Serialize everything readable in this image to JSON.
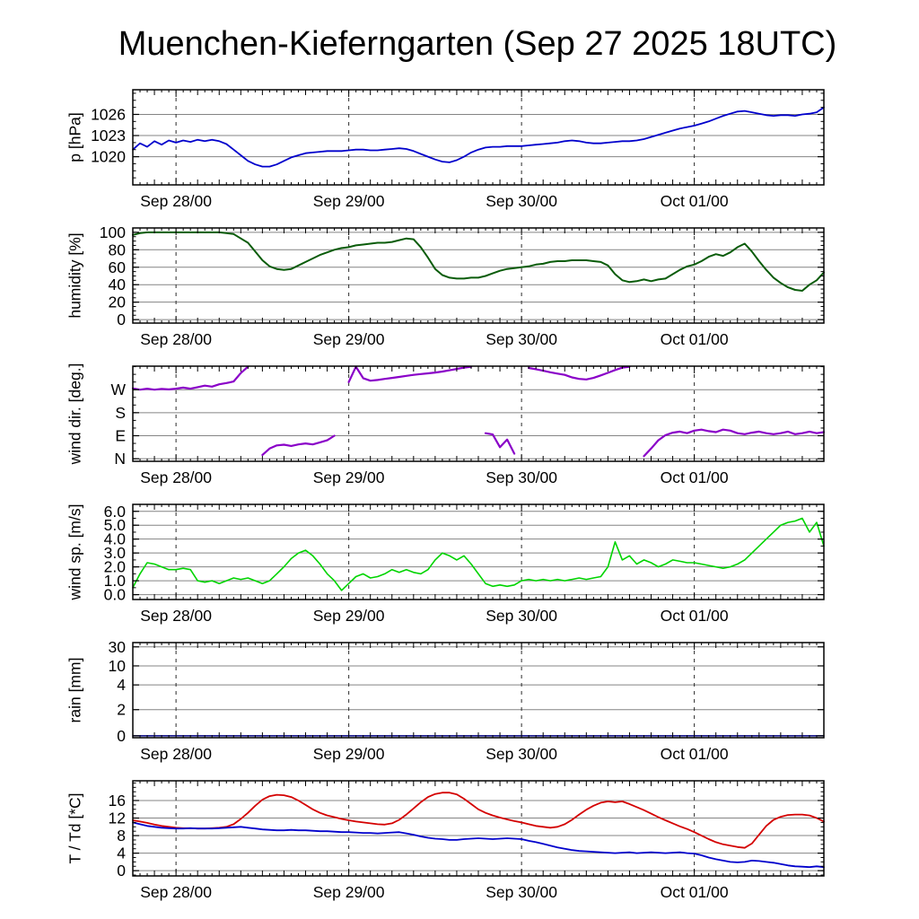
{
  "title": "Muenchen-Kieferngarten (Sep 27 2025 18UTC)",
  "colors": {
    "background": "#ffffff",
    "axis": "#000000",
    "grid": "#848484",
    "day_line": "#2b2b2b",
    "pressure": "#0000cc",
    "humidity": "#0a5c0a",
    "wind_direction": "#8a00c8",
    "wind_speed": "#00d400",
    "rain": "#000080",
    "temperature": "#d40000",
    "dewpoint": "#0000cc"
  },
  "xaxis": {
    "range": [
      0,
      96
    ],
    "step": 1,
    "day_ticks": [
      {
        "t": 6,
        "label": "Sep 28/00"
      },
      {
        "t": 30,
        "label": "Sep 29/00"
      },
      {
        "t": 54,
        "label": "Sep 30/00"
      },
      {
        "t": 78,
        "label": "Oct 01/00"
      }
    ]
  },
  "chart_data": [
    {
      "id": "pressure",
      "type": "line",
      "ylabel": "p [hPa]",
      "ylim": [
        1016,
        1029.5
      ],
      "ytick_minor": 1,
      "yticks": [
        {
          "v": 1020,
          "label": "1020"
        },
        {
          "v": 1023,
          "label": "1023"
        },
        {
          "v": 1026,
          "label": "1026"
        }
      ],
      "series": [
        {
          "name": "pressure",
          "color": "#0000cc",
          "width": 1.8,
          "values": [
            1021.0,
            1021.9,
            1021.4,
            1022.2,
            1021.7,
            1022.3,
            1022.0,
            1022.3,
            1022.1,
            1022.4,
            1022.2,
            1022.4,
            1022.2,
            1021.8,
            1021.0,
            1020.2,
            1019.4,
            1018.9,
            1018.6,
            1018.6,
            1018.9,
            1019.4,
            1019.9,
            1020.2,
            1020.5,
            1020.6,
            1020.7,
            1020.8,
            1020.8,
            1020.8,
            1020.9,
            1021.0,
            1021.0,
            1020.9,
            1020.9,
            1021.0,
            1021.1,
            1021.2,
            1021.1,
            1020.8,
            1020.4,
            1020.0,
            1019.6,
            1019.3,
            1019.2,
            1019.5,
            1020.0,
            1020.6,
            1021.0,
            1021.3,
            1021.4,
            1021.4,
            1021.5,
            1021.5,
            1021.5,
            1021.6,
            1021.7,
            1021.8,
            1021.9,
            1022.0,
            1022.2,
            1022.3,
            1022.2,
            1022.0,
            1021.9,
            1021.9,
            1022.0,
            1022.1,
            1022.2,
            1022.2,
            1022.3,
            1022.5,
            1022.8,
            1023.1,
            1023.4,
            1023.7,
            1024.0,
            1024.2,
            1024.4,
            1024.7,
            1025.0,
            1025.4,
            1025.8,
            1026.1,
            1026.4,
            1026.5,
            1026.3,
            1026.1,
            1025.9,
            1025.8,
            1025.9,
            1025.9,
            1025.8,
            1026.0,
            1026.1,
            1026.3,
            1027.0
          ]
        }
      ]
    },
    {
      "id": "humidity",
      "type": "line",
      "ylabel": "humidity [%]",
      "ylim": [
        -4,
        105
      ],
      "ytick_minor": 5,
      "yticks": [
        {
          "v": 0,
          "label": "0"
        },
        {
          "v": 20,
          "label": "20"
        },
        {
          "v": 40,
          "label": "40"
        },
        {
          "v": 60,
          "label": "60"
        },
        {
          "v": 80,
          "label": "80"
        },
        {
          "v": 100,
          "label": "100"
        }
      ],
      "series": [
        {
          "name": "humidity",
          "color": "#0a5c0a",
          "width": 2,
          "values": [
            97,
            99,
            100,
            100,
            100,
            100,
            100,
            100,
            100,
            100,
            100,
            100,
            100,
            99,
            98,
            93,
            88,
            78,
            68,
            61,
            58,
            57,
            58,
            62,
            66,
            70,
            74,
            77,
            80,
            82,
            83,
            85,
            86,
            87,
            88,
            88,
            89,
            91,
            93,
            92,
            83,
            71,
            58,
            51,
            48,
            47,
            47,
            48,
            48,
            50,
            53,
            56,
            58,
            59,
            60,
            61,
            63,
            64,
            66,
            67,
            67,
            68,
            68,
            68,
            67,
            66,
            62,
            52,
            45,
            43,
            44,
            46,
            44,
            46,
            47,
            52,
            57,
            61,
            63,
            67,
            72,
            75,
            73,
            77,
            83,
            87,
            78,
            67,
            57,
            48,
            42,
            37,
            34,
            33,
            40,
            45,
            54
          ]
        }
      ]
    },
    {
      "id": "wind-direction",
      "type": "line",
      "ylabel": "wind dir. [deg.]",
      "ylim": [
        -10,
        362
      ],
      "ytick_minor": 30,
      "yticks": [
        {
          "v": 0,
          "label": "N"
        },
        {
          "v": 90,
          "label": "E"
        },
        {
          "v": 180,
          "label": "S"
        },
        {
          "v": 270,
          "label": "W"
        }
      ],
      "series": [
        {
          "name": "wind-direction",
          "color": "#8a00c8",
          "width": 2.2,
          "values": [
            275,
            270,
            274,
            270,
            273,
            271,
            274,
            278,
            274,
            280,
            286,
            282,
            291,
            296,
            302,
            335,
            360,
            null,
            15,
            40,
            52,
            55,
            50,
            56,
            60,
            56,
            64,
            72,
            90,
            null,
            300,
            360,
            315,
            305,
            308,
            312,
            316,
            320,
            324,
            328,
            331,
            334,
            337,
            341,
            346,
            351,
            356,
            360,
            null,
            100,
            95,
            45,
            75,
            20,
            null,
            355,
            350,
            344,
            338,
            333,
            328,
            318,
            312,
            310,
            316,
            326,
            336,
            347,
            356,
            360,
            null,
            10,
            40,
            72,
            92,
            102,
            106,
            100,
            110,
            114,
            108,
            104,
            114,
            110,
            100,
            96,
            102,
            106,
            100,
            96,
            100,
            106,
            96,
            100,
            106,
            100,
            104
          ]
        }
      ]
    },
    {
      "id": "wind-speed",
      "type": "line",
      "ylabel": "wind sp. [m/s]",
      "ylim": [
        -0.35,
        6.5
      ],
      "ytick_minor": 0.5,
      "yticks": [
        {
          "v": 0,
          "label": "0.0"
        },
        {
          "v": 1,
          "label": "1.0"
        },
        {
          "v": 2,
          "label": "2.0"
        },
        {
          "v": 3,
          "label": "3.0"
        },
        {
          "v": 4,
          "label": "4.0"
        },
        {
          "v": 5,
          "label": "5.0"
        },
        {
          "v": 6,
          "label": "6.0"
        }
      ],
      "series": [
        {
          "name": "wind-speed",
          "color": "#00d400",
          "width": 1.6,
          "values": [
            0.5,
            1.5,
            2.3,
            2.2,
            2.0,
            1.8,
            1.8,
            1.9,
            1.8,
            1.0,
            0.9,
            1.0,
            0.8,
            1.0,
            1.2,
            1.1,
            1.2,
            1.0,
            0.8,
            1.0,
            1.5,
            2.0,
            2.6,
            3.0,
            3.2,
            2.8,
            2.2,
            1.5,
            1.0,
            0.3,
            0.8,
            1.3,
            1.5,
            1.2,
            1.3,
            1.5,
            1.8,
            1.6,
            1.8,
            1.6,
            1.5,
            1.8,
            2.5,
            3.0,
            2.8,
            2.5,
            2.8,
            2.2,
            1.5,
            0.8,
            0.6,
            0.7,
            0.6,
            0.7,
            1.0,
            1.1,
            1.0,
            1.1,
            1.0,
            1.1,
            1.0,
            1.1,
            1.2,
            1.1,
            1.2,
            1.3,
            2.0,
            3.8,
            2.5,
            2.8,
            2.2,
            2.5,
            2.3,
            2.0,
            2.2,
            2.5,
            2.4,
            2.3,
            2.3,
            2.2,
            2.1,
            2.0,
            1.9,
            2.0,
            2.2,
            2.5,
            3.0,
            3.5,
            4.0,
            4.5,
            5.0,
            5.2,
            5.3,
            5.5,
            4.5,
            5.2,
            3.5
          ]
        }
      ]
    },
    {
      "id": "rain",
      "type": "line",
      "ylabel": "rain [mm]",
      "yscale": "custom",
      "yticks": [
        {
          "v": 0,
          "f": 0.02,
          "label": "0"
        },
        {
          "v": 2,
          "f": 0.295,
          "label": "2"
        },
        {
          "v": 4,
          "f": 0.555,
          "label": "4"
        },
        {
          "v": 10,
          "f": 0.755,
          "label": "10"
        },
        {
          "v": 30,
          "f": 0.955,
          "label": "30"
        }
      ],
      "series": [
        {
          "name": "rain",
          "color": "#000080",
          "width": 1.5,
          "constant": 0
        }
      ]
    },
    {
      "id": "temperature",
      "type": "line",
      "ylabel": "T / Td [*C]",
      "ylim": [
        -1.2,
        20.5
      ],
      "ytick_minor": 1,
      "yticks": [
        {
          "v": 0,
          "label": "0"
        },
        {
          "v": 4,
          "label": "4"
        },
        {
          "v": 8,
          "label": "8"
        },
        {
          "v": 12,
          "label": "12"
        },
        {
          "v": 16,
          "label": "16"
        }
      ],
      "series": [
        {
          "name": "T",
          "color": "#d40000",
          "width": 1.8,
          "values": [
            11.5,
            11.2,
            10.9,
            10.5,
            10.2,
            10.0,
            9.8,
            9.7,
            9.7,
            9.6,
            9.6,
            9.7,
            9.8,
            10.0,
            10.6,
            11.8,
            13.2,
            14.8,
            16.2,
            17.0,
            17.3,
            17.2,
            16.8,
            16.0,
            15.0,
            14.0,
            13.2,
            12.6,
            12.2,
            11.8,
            11.5,
            11.2,
            11.0,
            10.8,
            10.6,
            10.5,
            10.8,
            11.6,
            12.8,
            14.2,
            15.6,
            16.8,
            17.5,
            17.8,
            17.8,
            17.4,
            16.4,
            15.2,
            14.0,
            13.2,
            12.6,
            12.1,
            11.7,
            11.3,
            11.0,
            10.6,
            10.2,
            10.0,
            9.8,
            10.0,
            10.6,
            11.6,
            12.8,
            13.9,
            14.8,
            15.5,
            15.8,
            15.6,
            15.8,
            15.2,
            14.5,
            13.8,
            13.0,
            12.2,
            11.5,
            10.8,
            10.1,
            9.5,
            8.8,
            8.0,
            7.2,
            6.5,
            6.0,
            5.7,
            5.4,
            5.2,
            6.2,
            8.2,
            10.2,
            11.6,
            12.3,
            12.7,
            12.8,
            12.8,
            12.6,
            12.0,
            11.2
          ]
        },
        {
          "name": "Td",
          "color": "#0000cc",
          "width": 1.8,
          "values": [
            11.0,
            10.6,
            10.2,
            10.0,
            9.8,
            9.7,
            9.6,
            9.6,
            9.7,
            9.6,
            9.6,
            9.6,
            9.7,
            9.8,
            9.9,
            10.0,
            9.8,
            9.6,
            9.4,
            9.3,
            9.2,
            9.2,
            9.3,
            9.2,
            9.2,
            9.1,
            9.0,
            9.0,
            8.9,
            8.8,
            8.8,
            8.7,
            8.6,
            8.6,
            8.5,
            8.6,
            8.7,
            8.8,
            8.5,
            8.2,
            7.8,
            7.5,
            7.3,
            7.2,
            7.0,
            7.0,
            7.2,
            7.3,
            7.4,
            7.3,
            7.2,
            7.3,
            7.4,
            7.3,
            7.2,
            6.8,
            6.5,
            6.1,
            5.7,
            5.3,
            5.0,
            4.7,
            4.5,
            4.4,
            4.3,
            4.2,
            4.1,
            4.0,
            4.1,
            4.2,
            4.0,
            4.1,
            4.2,
            4.1,
            4.0,
            4.1,
            4.2,
            4.0,
            3.9,
            3.5,
            3.0,
            2.6,
            2.3,
            2.0,
            1.9,
            2.0,
            2.3,
            2.2,
            2.0,
            1.8,
            1.5,
            1.2,
            1.0,
            0.9,
            0.8,
            1.0,
            0.8
          ]
        }
      ]
    }
  ]
}
